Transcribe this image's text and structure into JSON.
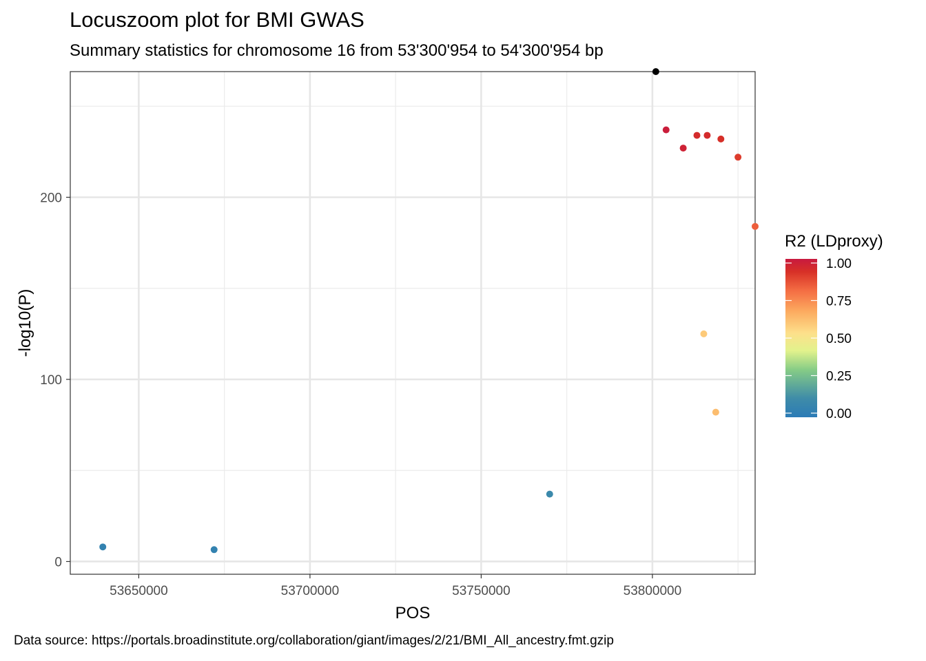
{
  "chart_data": {
    "type": "scatter",
    "title": "Locuszoom plot for BMI GWAS",
    "subtitle": "Summary statistics for chromosome 16 from 53'300'954 to 54'300'954 bp",
    "caption": "Data source: https://portals.broadinstitute.org/collaboration/giant/images/2/21/BMI_All_ancestry.fmt.gzip",
    "xlabel": "POS",
    "ylabel": "-log10(P)",
    "xlim": [
      53630000,
      53830000
    ],
    "ylim": [
      -7,
      269
    ],
    "x_ticks": [
      53650000,
      53700000,
      53750000,
      53800000
    ],
    "y_ticks": [
      0,
      100,
      200
    ],
    "grid": true,
    "legend": {
      "title": "R2 (LDproxy)",
      "placement": "right",
      "ticks": [
        1.0,
        0.75,
        0.5,
        0.25,
        0.0
      ],
      "tick_labels": [
        "1.00",
        "0.75",
        "0.50",
        "0.25",
        "0.00"
      ],
      "palette": [
        "#2b7bb6",
        "#3f8ca8",
        "#86cc86",
        "#e2f28c",
        "#fde08b",
        "#fcaa5f",
        "#f46d43",
        "#d73027",
        "#c8193f"
      ]
    },
    "lead_snp_color": "#000000",
    "points": [
      {
        "x": 53639500,
        "y": 8,
        "r2": 0.05
      },
      {
        "x": 53672000,
        "y": 6.5,
        "r2": 0.05
      },
      {
        "x": 53770000,
        "y": 37,
        "r2": 0.1
      },
      {
        "x": 53801000,
        "y": 269,
        "r2": null,
        "lead": true
      },
      {
        "x": 53804000,
        "y": 237,
        "r2": 0.98
      },
      {
        "x": 53809000,
        "y": 227,
        "r2": 0.95
      },
      {
        "x": 53813000,
        "y": 234,
        "r2": 0.9
      },
      {
        "x": 53816000,
        "y": 234,
        "r2": 0.9
      },
      {
        "x": 53820000,
        "y": 232,
        "r2": 0.88
      },
      {
        "x": 53825000,
        "y": 222,
        "r2": 0.85
      },
      {
        "x": 53830000,
        "y": 184,
        "r2": 0.78
      },
      {
        "x": 53815000,
        "y": 125,
        "r2": 0.55
      },
      {
        "x": 53818500,
        "y": 82,
        "r2": 0.58
      }
    ]
  }
}
